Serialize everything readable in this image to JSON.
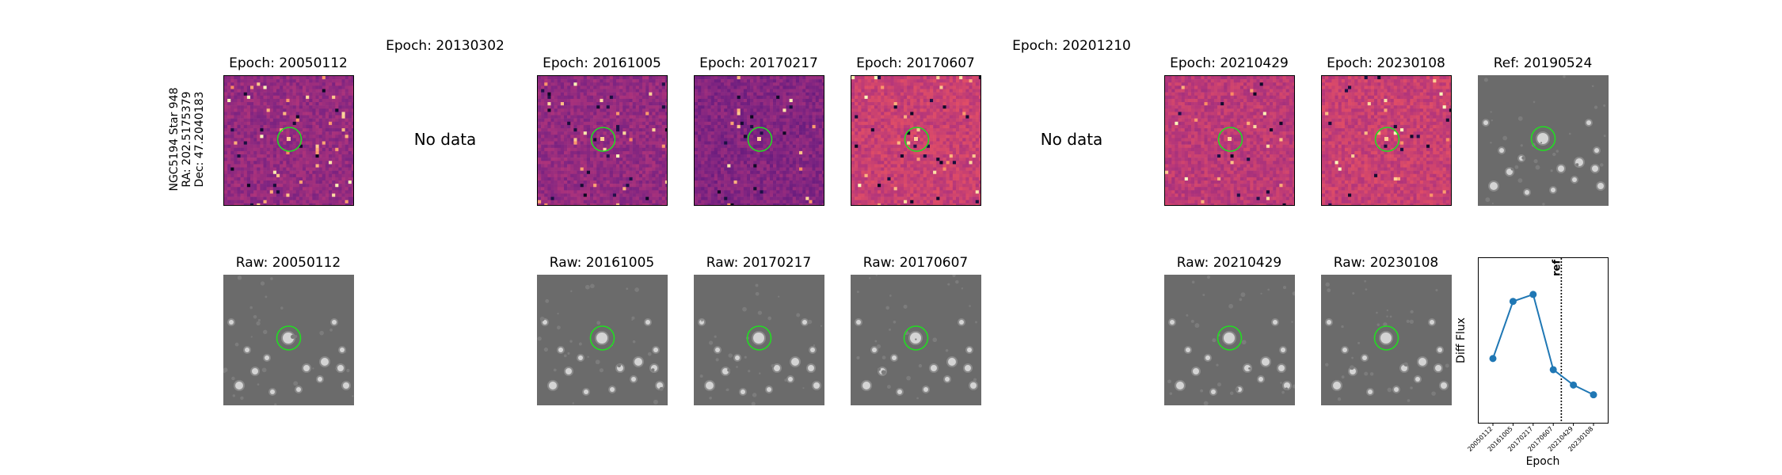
{
  "side_label": {
    "line1": "NGC5194 Star 948",
    "line2": "RA: 202.5175379",
    "line3": "Dec: 47.2040183"
  },
  "diff_panels": [
    {
      "title": "Epoch: 20050112",
      "has_data": true,
      "cmap": "magma-dark"
    },
    {
      "title": "Epoch: 20130302",
      "has_data": false,
      "nodata": "No data"
    },
    {
      "title": "Epoch: 20161005",
      "has_data": true,
      "cmap": "magma-dark"
    },
    {
      "title": "Epoch: 20170217",
      "has_data": true,
      "cmap": "magma-dark"
    },
    {
      "title": "Epoch: 20170607",
      "has_data": true,
      "cmap": "magma-light"
    },
    {
      "title": "Epoch: 20201210",
      "has_data": false,
      "nodata": "No data"
    },
    {
      "title": "Epoch: 20210429",
      "has_data": true,
      "cmap": "magma-light"
    },
    {
      "title": "Epoch: 20230108",
      "has_data": true,
      "cmap": "magma-light"
    }
  ],
  "ref_panel": {
    "title": "Ref: 20190524"
  },
  "raw_panels": [
    {
      "title": "Raw: 20050112"
    },
    {
      "title": "Raw: 20161005"
    },
    {
      "title": "Raw: 20170217"
    },
    {
      "title": "Raw: 20170607"
    },
    {
      "title": "Raw: 20210429"
    },
    {
      "title": "Raw: 20230108"
    }
  ],
  "colors": {
    "circle": "#22dd22",
    "line": "#1f77b4",
    "gray_bg": "#6b6b6b"
  },
  "chart_data": {
    "type": "line",
    "title": "",
    "xlabel": "Epoch",
    "ylabel": "Diff Flux",
    "categories": [
      "20050112",
      "20161005",
      "20170217",
      "20170607",
      "20210429",
      "20230108"
    ],
    "values": [
      0.37,
      0.78,
      0.83,
      0.29,
      0.18,
      0.11
    ],
    "ylim": [
      0,
      1
    ],
    "ref_line": {
      "position_between": [
        "20170607",
        "20210429"
      ],
      "fraction": 0.4,
      "label": "ref",
      "style": "dotted"
    },
    "grid": false
  }
}
